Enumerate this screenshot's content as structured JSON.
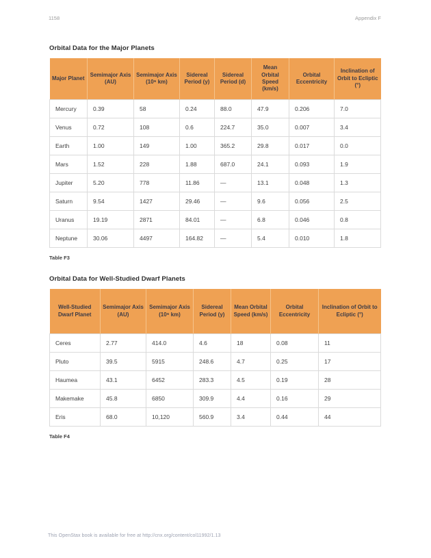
{
  "page": {
    "page_number": "1158",
    "appendix_label": "Appendix F",
    "footer": "This OpenStax book is available for free at http://cnx.org/content/col11992/1.13"
  },
  "colors": {
    "table_header_bg": "#efa153",
    "table_header_text": "#3c3a45",
    "body_text": "#404040",
    "grid_border": "#dadada",
    "muted_text": "#9b9b9b"
  },
  "table1": {
    "title": "Orbital Data for the Major Planets",
    "caption": "Table F3",
    "headers": [
      "Major Planet",
      "Semimajor Axis (AU)",
      "Semimajor Axis (10⁶ km)",
      "Sidereal Period (y)",
      "Sidereal Period (d)",
      "Mean Orbital Speed (km/s)",
      "Orbital Eccentricity",
      "Inclination of Orbit to Ecliptic (°)"
    ],
    "rows": [
      [
        "Mercury",
        "0.39",
        "58",
        "0.24",
        "88.0",
        "47.9",
        "0.206",
        "7.0"
      ],
      [
        "Venus",
        "0.72",
        "108",
        "0.6",
        "224.7",
        "35.0",
        "0.007",
        "3.4"
      ],
      [
        "Earth",
        "1.00",
        "149",
        "1.00",
        "365.2",
        "29.8",
        "0.017",
        "0.0"
      ],
      [
        "Mars",
        "1.52",
        "228",
        "1.88",
        "687.0",
        "24.1",
        "0.093",
        "1.9"
      ],
      [
        "Jupiter",
        "5.20",
        "778",
        "11.86",
        "—",
        "13.1",
        "0.048",
        "1.3"
      ],
      [
        "Saturn",
        "9.54",
        "1427",
        "29.46",
        "—",
        "9.6",
        "0.056",
        "2.5"
      ],
      [
        "Uranus",
        "19.19",
        "2871",
        "84.01",
        "—",
        "6.8",
        "0.046",
        "0.8"
      ],
      [
        "Neptune",
        "30.06",
        "4497",
        "164.82",
        "—",
        "5.4",
        "0.010",
        "1.8"
      ]
    ]
  },
  "table2": {
    "title": "Orbital Data for Well-Studied Dwarf Planets",
    "caption": "Table F4",
    "headers": [
      "Well-Studied Dwarf Planet",
      "Semimajor Axis (AU)",
      "Semimajor Axis (10⁶ km)",
      "Sidereal Period (y)",
      "Mean Orbital Speed (km/s)",
      "Orbital Eccentricity",
      "Inclination of Orbit to Ecliptic (°)"
    ],
    "rows": [
      [
        "Ceres",
        "2.77",
        "414.0",
        "4.6",
        "18",
        "0.08",
        "11"
      ],
      [
        "Pluto",
        "39.5",
        "5915",
        "248.6",
        "4.7",
        "0.25",
        "17"
      ],
      [
        "Haumea",
        "43.1",
        "6452",
        "283.3",
        "4.5",
        "0.19",
        "28"
      ],
      [
        "Makemake",
        "45.8",
        "6850",
        "309.9",
        "4.4",
        "0.16",
        "29"
      ],
      [
        "Eris",
        "68.0",
        "10,120",
        "560.9",
        "3.4",
        "0.44",
        "44"
      ]
    ]
  }
}
